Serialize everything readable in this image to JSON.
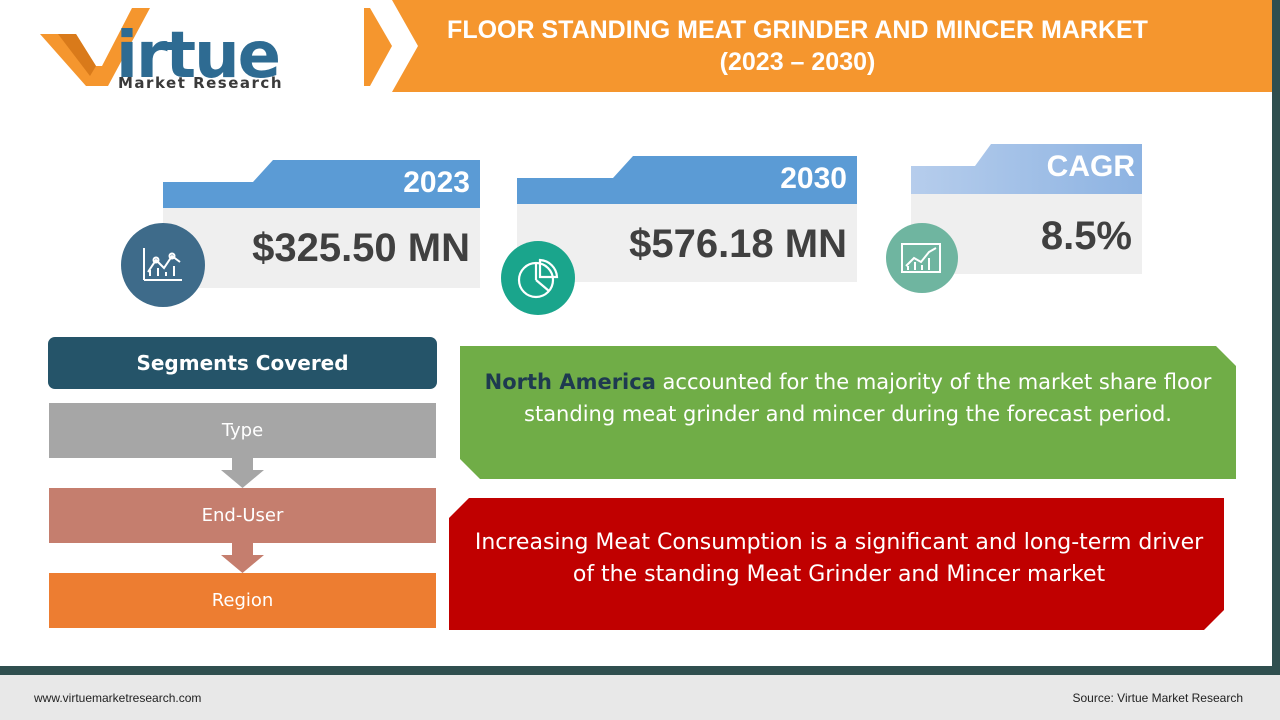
{
  "logo": {
    "word": "irtue",
    "subtitle": "Market Research"
  },
  "title": {
    "line1": "FLOOR STANDING MEAT GRINDER AND MINCER MARKET",
    "line2": "(2023 – 2030)"
  },
  "stats": [
    {
      "label": "2023",
      "value": "$325.50 MN",
      "icon": "line-chart-icon"
    },
    {
      "label": "2030",
      "value": "$576.18 MN",
      "icon": "pie-chart-icon"
    },
    {
      "label": "CAGR",
      "value": "8.5%",
      "icon": "growth-chart-icon"
    }
  ],
  "segments": {
    "heading": "Segments Covered",
    "items": [
      "Type",
      "End-User",
      "Region"
    ]
  },
  "insights": {
    "region_bold": "North America",
    "region_text": " accounted for the majority of the market share floor standing meat grinder and mincer during the forecast period.",
    "driver_text": "Increasing Meat Consumption is a significant and long-term driver of the standing Meat Grinder and Mincer market"
  },
  "footer": {
    "url": "www.virtuemarketresearch.com",
    "source": "Source:  Virtue Market Research"
  },
  "colors": {
    "orange": "#f5962e",
    "teal": "#255469",
    "blue": "#5b9bd5",
    "green": "#70ad47",
    "red": "#c00000",
    "gray_segment": "#a6a6a6",
    "rose_segment": "#c57e6e",
    "orange_segment": "#ed7d31"
  }
}
